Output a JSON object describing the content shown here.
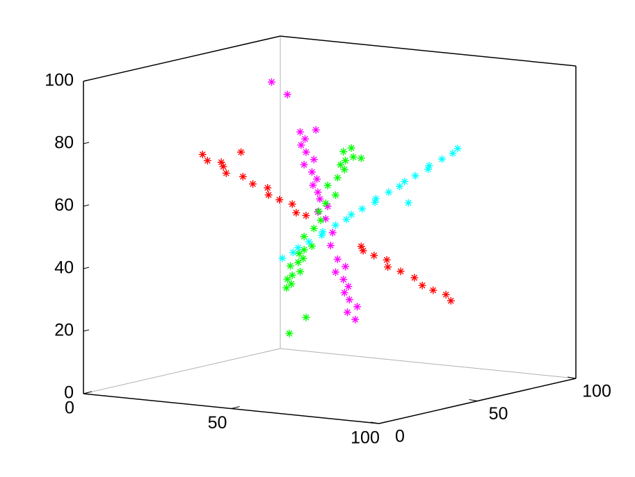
{
  "chart_data": {
    "type": "scatter3d",
    "xlim": [
      0,
      100
    ],
    "ylim": [
      0,
      100
    ],
    "zlim": [
      0,
      100
    ],
    "xticks": [
      0,
      50,
      100
    ],
    "yticks": [
      0,
      50,
      100
    ],
    "zticks": [
      0,
      20,
      40,
      60,
      80,
      100
    ],
    "series": [
      {
        "color": "#ff0000",
        "x": [
          7,
          10,
          12,
          14,
          17,
          20,
          24,
          27,
          30,
          33,
          36,
          40,
          42,
          60,
          62,
          65,
          68,
          71,
          74,
          78,
          82,
          85,
          88,
          91,
          20
        ],
        "y": [
          50,
          48,
          52,
          50,
          47,
          51,
          50,
          53,
          49,
          50,
          52,
          48,
          50,
          51,
          49,
          50,
          52,
          48,
          50,
          51,
          49,
          50,
          52,
          50,
          50
        ],
        "z": [
          70,
          68.6,
          67.7,
          66.8,
          65.4,
          64,
          62.2,
          60.8,
          59.4,
          58,
          56.6,
          54.8,
          53.8,
          45.5,
          44.6,
          43.2,
          41.8,
          40.4,
          39,
          37.2,
          35.4,
          34,
          32.6,
          31.2,
          72
        ]
      },
      {
        "color": "#ff00ff",
        "x": [
          50,
          51,
          49,
          50,
          52,
          48,
          50,
          51,
          49,
          50,
          50,
          52,
          48,
          50,
          51,
          49,
          50,
          52,
          48,
          50,
          51,
          49,
          50,
          52,
          48,
          50,
          45,
          50,
          50
        ],
        "y": [
          35,
          36,
          37,
          38,
          39,
          40,
          41,
          42,
          43,
          44,
          45,
          46,
          47,
          48,
          50,
          52,
          54,
          55,
          56,
          57,
          58,
          59,
          60,
          61,
          62,
          63,
          28,
          28.5,
          43
        ],
        "z": [
          83.5,
          81.2,
          78.9,
          76.6,
          74.3,
          72.1,
          69.8,
          67.5,
          65.2,
          62.9,
          60.6,
          58.3,
          56,
          53.8,
          49.2,
          44.6,
          40,
          37.7,
          35.4,
          33.1,
          30.8,
          28.5,
          26.2,
          24,
          21.7,
          19.4,
          100,
          96.4,
          83
        ]
      },
      {
        "color": "#00ff00",
        "x": [
          50,
          51,
          49,
          50,
          52,
          48,
          50,
          51,
          49,
          50,
          52,
          48,
          50,
          51,
          49,
          50,
          52,
          48,
          50,
          51,
          49,
          50,
          52,
          48,
          50,
          50,
          50,
          50
        ],
        "y": [
          28,
          29,
          30,
          31,
          32,
          33,
          34,
          35,
          36,
          37,
          38,
          40,
          42,
          44,
          46,
          48,
          50,
          52,
          54,
          56,
          57,
          58,
          59,
          60,
          61,
          29.5,
          38,
          66
        ],
        "z": [
          34.6,
          35.8,
          37,
          38.2,
          39.4,
          40.7,
          41.9,
          43.1,
          44.3,
          45.5,
          46.7,
          49.1,
          51.6,
          54,
          56.4,
          58.8,
          61.3,
          63.7,
          66.1,
          68.5,
          69.7,
          71,
          72.2,
          73.4,
          74.6,
          19.8,
          23.7,
          70.6
        ]
      },
      {
        "color": "#00ffff",
        "x": [
          20,
          23,
          26,
          29,
          32,
          35,
          38,
          41,
          44,
          47,
          50,
          53,
          56,
          59,
          62,
          65,
          68,
          71,
          74,
          77,
          80,
          60
        ],
        "y": [
          71,
          72,
          70,
          71,
          73,
          69,
          71,
          72,
          70,
          71,
          73,
          69,
          71,
          72,
          70,
          71,
          73,
          69,
          71,
          72,
          70,
          75
        ],
        "z": [
          35,
          37,
          39.1,
          41.1,
          43.2,
          45.2,
          47.3,
          49.3,
          51.4,
          53.4,
          55.5,
          57.5,
          59.6,
          61.6,
          63.7,
          65.7,
          67.8,
          69.8,
          71.9,
          73.9,
          76,
          56
        ]
      }
    ]
  }
}
